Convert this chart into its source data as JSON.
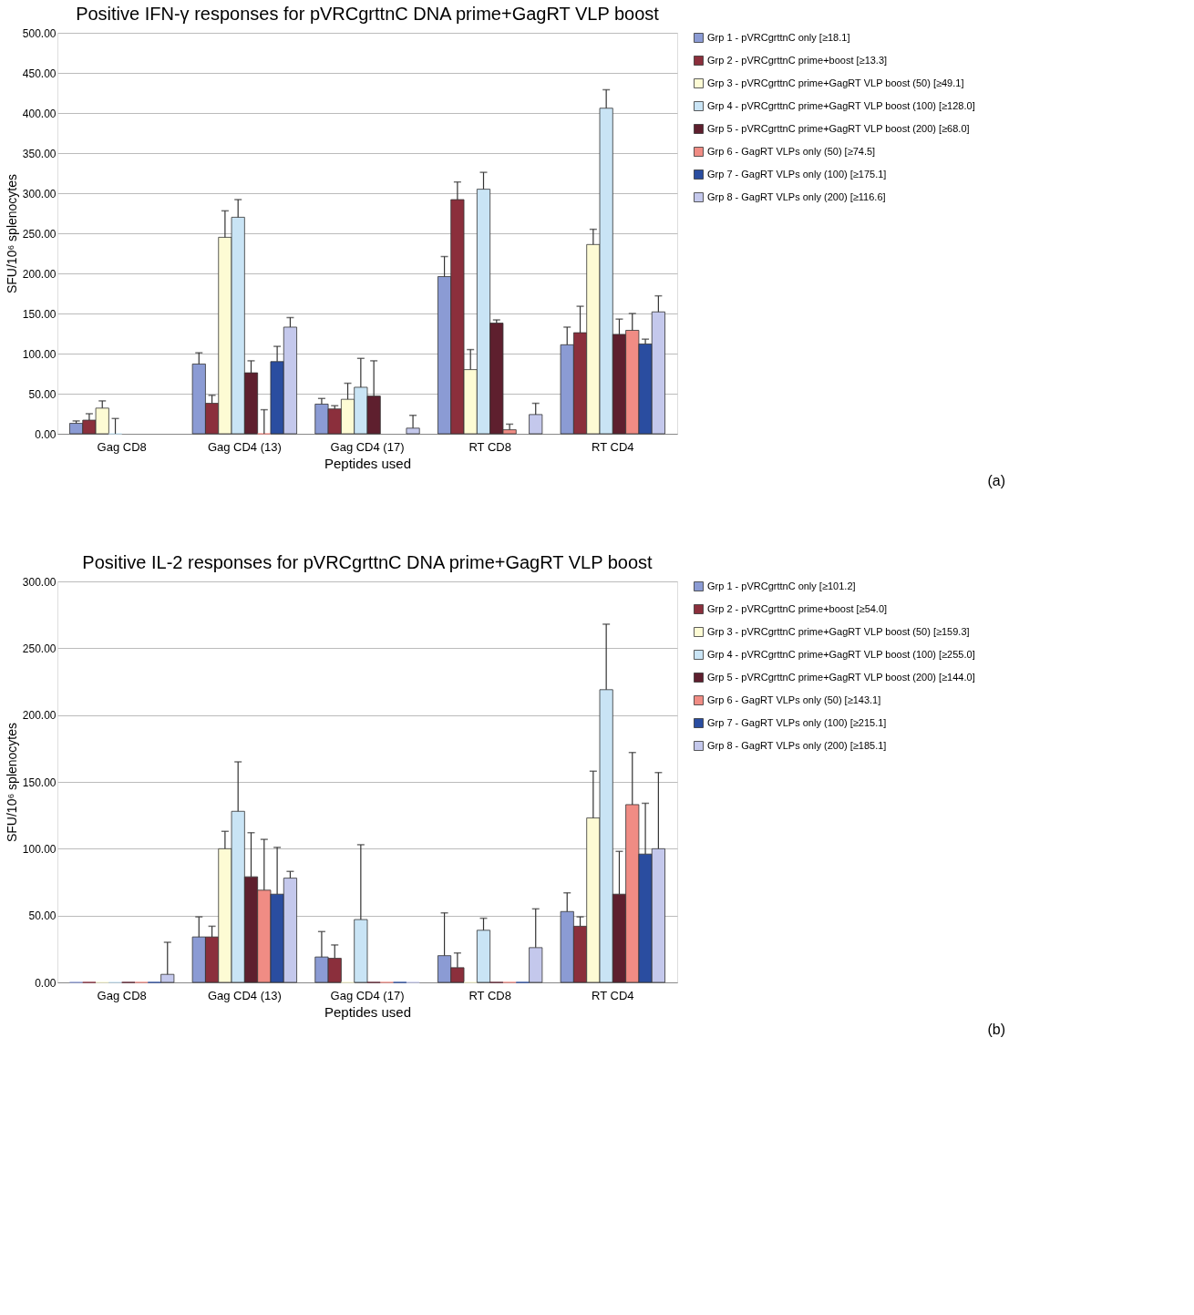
{
  "chart_data": [
    {
      "type": "bar",
      "title": "Positive IFN-γ responses for pVRCgrttnC DNA prime+GagRT VLP boost",
      "xlabel": "Peptides used",
      "ylabel": "SFU/10⁶ splenocytes",
      "categories": [
        "Gag CD8",
        "Gag CD4 (13)",
        "Gag CD4 (17)",
        "RT CD8",
        "RT CD4"
      ],
      "ylim": [
        0,
        500
      ],
      "yticks": [
        {
          "value": 0,
          "label": "0.00"
        },
        {
          "value": 50,
          "label": "50.00"
        },
        {
          "value": 100,
          "label": "100.00"
        },
        {
          "value": 150,
          "label": "150.00"
        },
        {
          "value": 200,
          "label": "200.00"
        },
        {
          "value": 250,
          "label": "250.00"
        },
        {
          "value": 300,
          "label": "300.00"
        },
        {
          "value": 350,
          "label": "350.00"
        },
        {
          "value": 400,
          "label": "400.00"
        },
        {
          "value": 450,
          "label": "450.00"
        },
        {
          "value": 500,
          "label": "500.00"
        }
      ],
      "grid": "y",
      "legend": "right",
      "annotations": [
        "(a)"
      ],
      "series": [
        {
          "name": "Grp 1 - pVRCgrttnC only [≥18.1]",
          "color": "#8b9bd4",
          "values": [
            13,
            87,
            37,
            196,
            111
          ],
          "errors": [
            [
              13,
              16
            ],
            [
              87,
              101
            ],
            [
              37,
              44
            ],
            [
              196,
              221
            ],
            [
              111,
              133
            ]
          ]
        },
        {
          "name": "Grp 2 - pVRCgrttnC prime+boost [≥13.3]",
          "color": "#8b2f3c",
          "values": [
            17,
            38,
            31,
            292,
            126
          ],
          "errors": [
            [
              17,
              25
            ],
            [
              38,
              48
            ],
            [
              31,
              35
            ],
            [
              292,
              314
            ],
            [
              126,
              159
            ]
          ]
        },
        {
          "name": "Grp 3 - pVRCgrttnC prime+GagRT VLP boost (50) [≥49.1]",
          "color": "#fdfbd4",
          "values": [
            32,
            245,
            43,
            80,
            236
          ],
          "errors": [
            [
              32,
              41
            ],
            [
              245,
              278
            ],
            [
              43,
              63
            ],
            [
              80,
              105
            ],
            [
              236,
              255
            ]
          ]
        },
        {
          "name": "Grp 4 - pVRCgrttnC prime+GagRT VLP boost (100) [≥128.0]",
          "color": "#c9e4f5",
          "values": [
            0,
            270,
            58,
            305,
            406
          ],
          "errors": [
            [
              0,
              19
            ],
            [
              270,
              292
            ],
            [
              58,
              94
            ],
            [
              305,
              326
            ],
            [
              406,
              429
            ]
          ]
        },
        {
          "name": "Grp 5 - pVRCgrttnC prime+GagRT VLP boost (200) [≥68.0]",
          "color": "#5e1f2e",
          "values": [
            null,
            76,
            47,
            138,
            124
          ],
          "errors": [
            null,
            [
              76,
              91
            ],
            [
              47,
              91
            ],
            [
              138,
              142
            ],
            [
              124,
              143
            ]
          ]
        },
        {
          "name": "Grp 6 - GagRT VLPs only (50) [≥74.5]",
          "color": "#f08c84",
          "values": [
            null,
            0,
            null,
            5,
            129
          ],
          "errors": [
            null,
            [
              0,
              30
            ],
            null,
            [
              5,
              12
            ],
            [
              129,
              150
            ]
          ]
        },
        {
          "name": "Grp 7 - GagRT VLPs only (100) [≥175.1]",
          "color": "#2a4da0",
          "values": [
            null,
            90,
            null,
            null,
            112
          ],
          "errors": [
            null,
            [
              90,
              109
            ],
            null,
            null,
            [
              112,
              118
            ]
          ]
        },
        {
          "name": "Grp 8 - GagRT VLPs only (200) [≥116.6]",
          "color": "#c4c8ec",
          "values": [
            null,
            133,
            7,
            24,
            152
          ],
          "errors": [
            null,
            [
              133,
              145
            ],
            [
              7,
              23
            ],
            [
              24,
              38
            ],
            [
              152,
              172
            ]
          ]
        }
      ]
    },
    {
      "type": "bar",
      "title": "Positive IL-2 responses for pVRCgrttnC DNA prime+GagRT VLP boost",
      "xlabel": "Peptides used",
      "ylabel": "SFU/10⁶ splenocytes",
      "categories": [
        "Gag CD8",
        "Gag CD4 (13)",
        "Gag CD4 (17)",
        "RT CD8",
        "RT CD4"
      ],
      "ylim": [
        0,
        300
      ],
      "yticks": [
        {
          "value": 0,
          "label": "0.00"
        },
        {
          "value": 50,
          "label": "50.00"
        },
        {
          "value": 100,
          "label": "100.00"
        },
        {
          "value": 150,
          "label": "150.00"
        },
        {
          "value": 200,
          "label": "200.00"
        },
        {
          "value": 250,
          "label": "250.00"
        },
        {
          "value": 300,
          "label": "300.00"
        }
      ],
      "grid": "y",
      "legend": "right",
      "annotations": [
        "(b)"
      ],
      "series": [
        {
          "name": "Grp 1 - pVRCgrttnC only [≥101.2]",
          "color": "#8b9bd4",
          "values": [
            0,
            34,
            19,
            20,
            53
          ],
          "errors": [
            null,
            [
              34,
              49
            ],
            [
              19,
              38
            ],
            [
              20,
              52
            ],
            [
              53,
              67
            ]
          ]
        },
        {
          "name": "Grp 2 - pVRCgrttnC prime+boost [≥54.0]",
          "color": "#8b2f3c",
          "values": [
            0,
            34,
            18,
            11,
            42
          ],
          "errors": [
            null,
            [
              34,
              42
            ],
            [
              18,
              28
            ],
            [
              11,
              22
            ],
            [
              42,
              49
            ]
          ]
        },
        {
          "name": "Grp 3 - pVRCgrttnC prime+GagRT VLP boost (50) [≥159.3]",
          "color": "#fdfbd4",
          "values": [
            0,
            100,
            0,
            0,
            123
          ],
          "errors": [
            null,
            [
              100,
              113
            ],
            null,
            null,
            [
              123,
              158
            ]
          ]
        },
        {
          "name": "Grp 4 - pVRCgrttnC prime+GagRT VLP boost (100) [≥255.0]",
          "color": "#c9e4f5",
          "values": [
            0,
            128,
            47,
            39,
            219
          ],
          "errors": [
            null,
            [
              128,
              165
            ],
            [
              47,
              103
            ],
            [
              39,
              48
            ],
            [
              219,
              268
            ]
          ]
        },
        {
          "name": "Grp 5 - pVRCgrttnC prime+GagRT VLP boost (200) [≥144.0]",
          "color": "#5e1f2e",
          "values": [
            0,
            79,
            0,
            0,
            66
          ],
          "errors": [
            null,
            [
              79,
              112
            ],
            null,
            null,
            [
              66,
              98
            ]
          ]
        },
        {
          "name": "Grp 6 - GagRT VLPs only (50) [≥143.1]",
          "color": "#f08c84",
          "values": [
            0,
            69,
            0,
            0,
            133
          ],
          "errors": [
            null,
            [
              69,
              107
            ],
            null,
            null,
            [
              133,
              172
            ]
          ]
        },
        {
          "name": "Grp 7 - GagRT VLPs only (100) [≥215.1]",
          "color": "#2a4da0",
          "values": [
            0,
            66,
            0,
            0,
            96
          ],
          "errors": [
            null,
            [
              66,
              101
            ],
            null,
            null,
            [
              96,
              134
            ]
          ]
        },
        {
          "name": "Grp 8 - GagRT VLPs only (200) [≥185.1]",
          "color": "#c4c8ec",
          "values": [
            6,
            78,
            0,
            26,
            100
          ],
          "errors": [
            [
              6,
              30
            ],
            [
              78,
              83
            ],
            null,
            [
              26,
              55
            ],
            [
              100,
              157
            ]
          ]
        }
      ]
    }
  ]
}
